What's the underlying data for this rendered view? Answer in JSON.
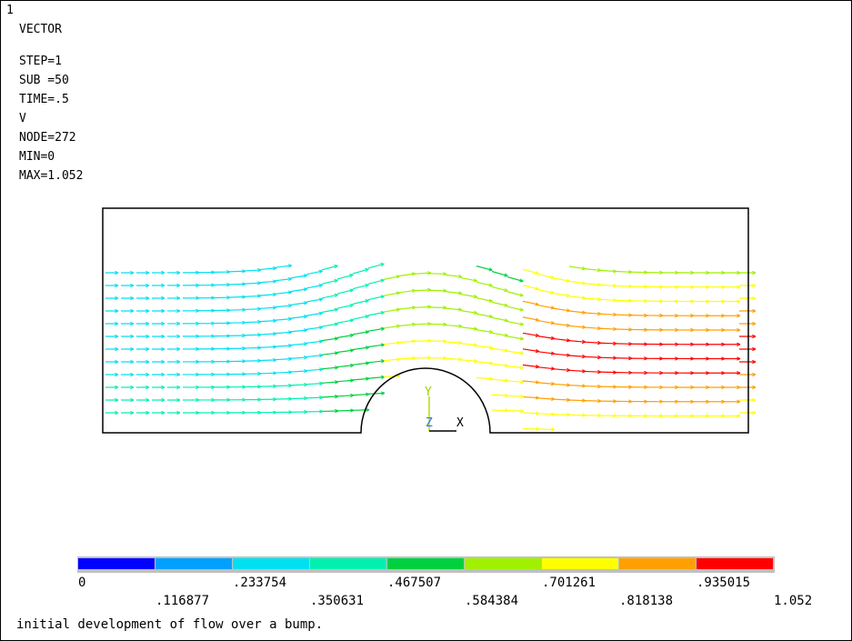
{
  "window_number": "1",
  "info": {
    "plot_kind": "VECTOR",
    "lines": [
      "STEP=1",
      "SUB =50",
      "TIME=.5",
      "V",
      "NODE=272",
      "MIN=0",
      "MAX=1.052"
    ]
  },
  "axis_triad": {
    "y": "Y",
    "z": "Z",
    "x": "X"
  },
  "legend": {
    "colors": [
      "#0000ff",
      "#00a0ff",
      "#00e0f0",
      "#00f0b0",
      "#00d040",
      "#a0f000",
      "#ffff00",
      "#ffa000",
      "#ff0000"
    ],
    "labels_top": [
      "0",
      ".233754",
      ".467507",
      ".701261",
      ".935015"
    ],
    "labels_bottom": [
      ".116877",
      ".350631",
      ".584384",
      ".818138",
      "1.052"
    ]
  },
  "caption": "initial development of flow over a bump."
}
